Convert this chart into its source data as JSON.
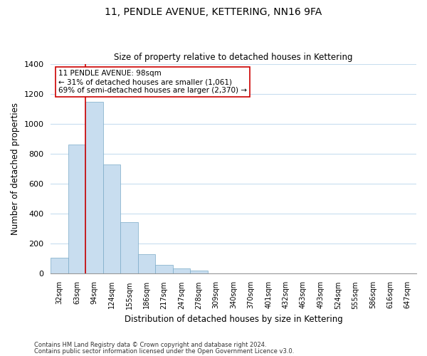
{
  "title": "11, PENDLE AVENUE, KETTERING, NN16 9FA",
  "subtitle": "Size of property relative to detached houses in Kettering",
  "xlabel": "Distribution of detached houses by size in Kettering",
  "ylabel": "Number of detached properties",
  "bar_labels": [
    "32sqm",
    "63sqm",
    "94sqm",
    "124sqm",
    "155sqm",
    "186sqm",
    "217sqm",
    "247sqm",
    "278sqm",
    "309sqm",
    "340sqm",
    "370sqm",
    "401sqm",
    "432sqm",
    "463sqm",
    "493sqm",
    "524sqm",
    "555sqm",
    "586sqm",
    "616sqm",
    "647sqm"
  ],
  "bar_values": [
    105,
    860,
    1145,
    730,
    345,
    130,
    60,
    33,
    20,
    0,
    0,
    0,
    0,
    0,
    0,
    0,
    0,
    0,
    0,
    0,
    0
  ],
  "bar_color": "#c8ddef",
  "bar_edge_color": "#7aaac8",
  "marker_bar_index": 2,
  "marker_line_color": "#cc0000",
  "ylim": [
    0,
    1400
  ],
  "yticks": [
    0,
    200,
    400,
    600,
    800,
    1000,
    1200,
    1400
  ],
  "annotation_title": "11 PENDLE AVENUE: 98sqm",
  "annotation_line1": "← 31% of detached houses are smaller (1,061)",
  "annotation_line2": "69% of semi-detached houses are larger (2,370) →",
  "footer_line1": "Contains HM Land Registry data © Crown copyright and database right 2024.",
  "footer_line2": "Contains public sector information licensed under the Open Government Licence v3.0.",
  "background_color": "#ffffff",
  "grid_color": "#c8ddef"
}
